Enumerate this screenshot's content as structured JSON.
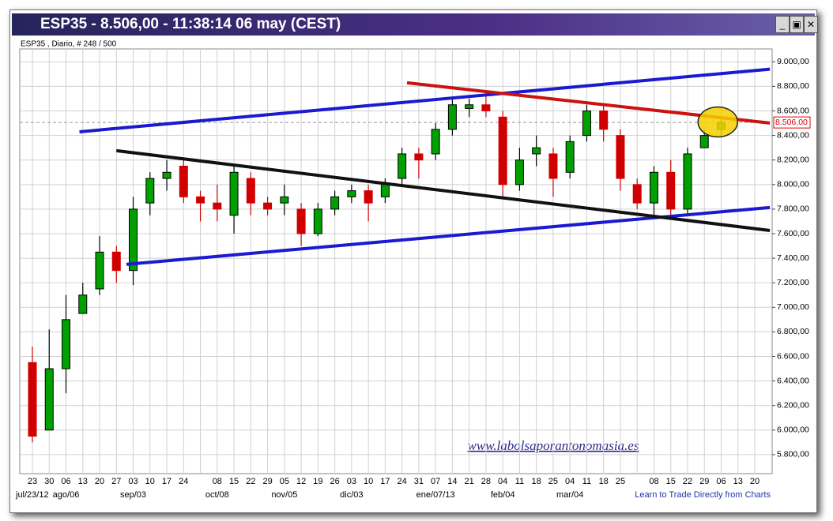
{
  "window_title": "ESP35 - 8.506,00 - 11:38:14  06 may (CEST)",
  "chart_data": {
    "type": "candlestick",
    "subtitle": "ESP35 , Diario, # 248 / 500",
    "categories": [
      "23",
      "30",
      "06",
      "13",
      "20",
      "27",
      "03",
      "10",
      "17",
      "24",
      null,
      "08",
      "15",
      "22",
      "29",
      "05",
      "12",
      "19",
      "26",
      "03",
      "10",
      "17",
      "24",
      "31",
      "07",
      "14",
      "21",
      "28",
      "04",
      "11",
      "18",
      "25",
      "04",
      "11",
      "18",
      "25",
      null,
      "08",
      "15",
      "22",
      "29",
      "06",
      "13",
      "20"
    ],
    "period_labels": [
      "jul/23/12",
      null,
      "ago/06",
      null,
      null,
      null,
      "sep/03",
      null,
      null,
      null,
      null,
      "oct/08",
      null,
      null,
      null,
      "nov/05",
      null,
      null,
      null,
      "dic/03",
      null,
      null,
      null,
      null,
      "ene/07/13",
      null,
      null,
      null,
      "feb/04",
      null,
      null,
      null,
      "mar/04",
      null,
      null,
      null,
      null,
      null,
      null,
      null,
      null,
      null,
      null,
      null
    ],
    "open": [
      6550,
      6000,
      6500,
      6950,
      7150,
      7450,
      7300,
      7850,
      8050,
      8150,
      7900,
      7850,
      7750,
      8050,
      7850,
      7850,
      7800,
      7600,
      7800,
      7900,
      7950,
      7900,
      8050,
      8250,
      8250,
      8450,
      8620,
      8650,
      8550,
      8000,
      8250,
      8250,
      8100,
      8400,
      8600,
      8400,
      8000,
      7850,
      8100,
      7800,
      8300,
      8450,
      null,
      null
    ],
    "high": [
      6680,
      6820,
      7100,
      7200,
      7580,
      7500,
      7900,
      8100,
      8200,
      8200,
      7950,
      8000,
      8150,
      8100,
      7900,
      8000,
      7850,
      7850,
      7950,
      8000,
      8000,
      8050,
      8300,
      8300,
      8500,
      8700,
      8700,
      8750,
      8600,
      8300,
      8400,
      8300,
      8400,
      8650,
      8650,
      8450,
      8050,
      8150,
      8200,
      8300,
      8450,
      8550,
      null,
      null
    ],
    "low": [
      5900,
      6000,
      6300,
      6950,
      7100,
      7200,
      7180,
      7750,
      7950,
      7850,
      7700,
      7700,
      7600,
      7750,
      7750,
      7750,
      7500,
      7580,
      7750,
      7850,
      7700,
      7850,
      8000,
      8050,
      8200,
      8400,
      8550,
      8550,
      7900,
      7950,
      8150,
      7900,
      8050,
      8350,
      8350,
      7950,
      7800,
      7750,
      7750,
      7750,
      8300,
      8400,
      null,
      null
    ],
    "close": [
      5950,
      6500,
      6900,
      7100,
      7450,
      7300,
      7800,
      8050,
      8100,
      7900,
      7850,
      7800,
      8100,
      7850,
      7800,
      7900,
      7600,
      7800,
      7900,
      7950,
      7850,
      8000,
      8250,
      8200,
      8450,
      8650,
      8650,
      8600,
      8000,
      8200,
      8300,
      8050,
      8350,
      8600,
      8450,
      8050,
      7850,
      8100,
      7800,
      8250,
      8400,
      8506,
      null,
      null
    ],
    "up_color": "#00a000",
    "down_color": "#d00000",
    "ylim": [
      5645,
      9105
    ],
    "yticks": [
      {
        "value": 5800,
        "label": "5.800,00"
      },
      {
        "value": 6000,
        "label": "6.000,00"
      },
      {
        "value": 6200,
        "label": "6.200,00"
      },
      {
        "value": 6400,
        "label": "6.400,00"
      },
      {
        "value": 6600,
        "label": "6.600,00"
      },
      {
        "value": 6800,
        "label": "6.800,00"
      },
      {
        "value": 7000,
        "label": "7.000,00"
      },
      {
        "value": 7200,
        "label": "7.200,00"
      },
      {
        "value": 7400,
        "label": "7.400,00"
      },
      {
        "value": 7600,
        "label": "7.600,00"
      },
      {
        "value": 7800,
        "label": "7.800,00"
      },
      {
        "value": 8000,
        "label": "8.000,00"
      },
      {
        "value": 8200,
        "label": "8.200,00"
      },
      {
        "value": 8400,
        "label": "8.400,00"
      },
      {
        "value": 8600,
        "label": "8.600,00"
      },
      {
        "value": 8800,
        "label": "8.800,00"
      },
      {
        "value": 9000,
        "label": "9.000,00"
      }
    ],
    "grid": true,
    "last_price": {
      "value": 8506,
      "label": "8.506,00"
    },
    "trendlines": [
      {
        "color": "#1a1ad0",
        "points": [
          [
            2.8,
            8430
          ],
          [
            43.9,
            8940
          ]
        ]
      },
      {
        "color": "#1a1ad0",
        "points": [
          [
            5.6,
            7350
          ],
          [
            43.9,
            7813
          ]
        ]
      },
      {
        "color": "#111111",
        "points": [
          [
            5.0,
            8276
          ],
          [
            43.9,
            7626
          ]
        ]
      },
      {
        "color": "#cc1111",
        "points": [
          [
            22.3,
            8829
          ],
          [
            43.9,
            8501
          ]
        ]
      }
    ],
    "highlight": {
      "x": 40.8,
      "y": 8510,
      "color": "#f5d000"
    },
    "watermark": "www.labolsaporantonomasia.es",
    "footer_link": "Learn to Trade Directly from Charts"
  }
}
